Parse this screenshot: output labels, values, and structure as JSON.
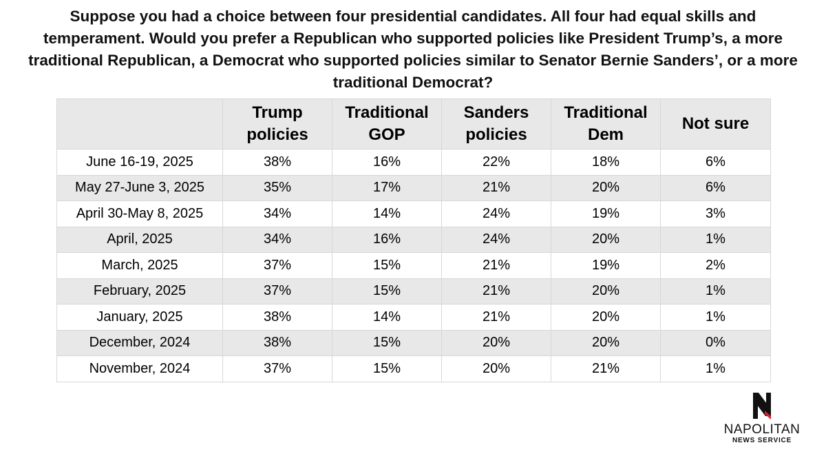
{
  "title": "Suppose you had a choice between four presidential candidates. All four had equal skills and temperament. Would you prefer a Republican who supported policies like President Trump’s, a more traditional Republican, a Democrat who supported policies similar to Senator Bernie Sanders’, or a more traditional Democrat?",
  "colors": {
    "header_bg": "#e8e8e8",
    "shaded_row_bg": "#e8e8e8",
    "border": "#d7d7d7",
    "logo_accent": "#d9232e"
  },
  "chart_data": {
    "type": "table",
    "columns": [
      "",
      "Trump policies",
      "Traditional GOP",
      "Sanders policies",
      "Traditional Dem",
      "Not sure"
    ],
    "rows": [
      [
        "June 16-19, 2025",
        "38%",
        "16%",
        "22%",
        "18%",
        "6%"
      ],
      [
        "May 27-June 3, 2025",
        "35%",
        "17%",
        "21%",
        "20%",
        "6%"
      ],
      [
        "April 30-May 8, 2025",
        "34%",
        "14%",
        "24%",
        "19%",
        "3%"
      ],
      [
        "April, 2025",
        "34%",
        "16%",
        "24%",
        "20%",
        "1%"
      ],
      [
        "March, 2025",
        "37%",
        "15%",
        "21%",
        "19%",
        "2%"
      ],
      [
        "February, 2025",
        "37%",
        "15%",
        "21%",
        "20%",
        "1%"
      ],
      [
        "January, 2025",
        "38%",
        "14%",
        "21%",
        "20%",
        "1%"
      ],
      [
        "December, 2024",
        "38%",
        "15%",
        "20%",
        "20%",
        "0%"
      ],
      [
        "November, 2024",
        "37%",
        "15%",
        "20%",
        "21%",
        "1%"
      ]
    ]
  },
  "logo": {
    "name": "NAPOLITAN",
    "subtitle": "NEWS SERVICE",
    "icon": "napolitan-n-logo-icon"
  }
}
